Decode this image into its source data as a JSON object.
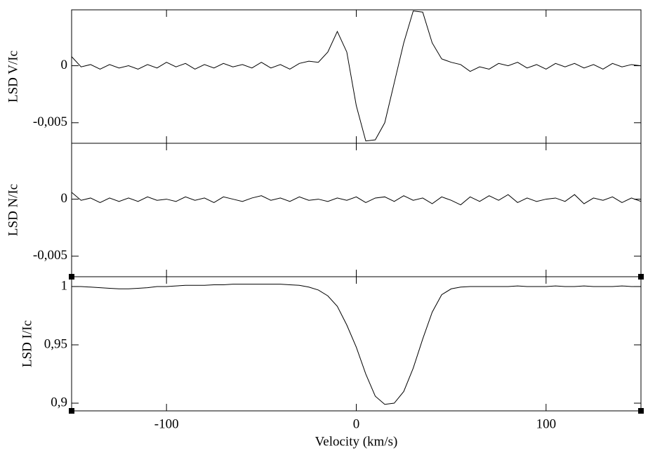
{
  "chart_data": [
    {
      "type": "line",
      "ylabel": "LSD V/Ic",
      "xlim": [
        -150,
        150
      ],
      "ylim": [
        -0.0068,
        0.0049
      ],
      "yticks": [
        {
          "value": -0.005,
          "label": "-0,005"
        },
        0
      ],
      "x": [
        -150,
        -145,
        -140,
        -135,
        -130,
        -125,
        -120,
        -115,
        -110,
        -105,
        -100,
        -95,
        -90,
        -85,
        -80,
        -75,
        -70,
        -65,
        -60,
        -55,
        -50,
        -45,
        -40,
        -35,
        -30,
        -25,
        -20,
        -15,
        -10,
        -5,
        0,
        5,
        10,
        15,
        20,
        25,
        30,
        35,
        40,
        45,
        50,
        55,
        60,
        65,
        70,
        75,
        80,
        85,
        90,
        95,
        100,
        105,
        110,
        115,
        120,
        125,
        130,
        135,
        140,
        145,
        150
      ],
      "series": [
        {
          "color": "#000000",
          "values": [
            0.0008,
            -0.0001,
            0.0001,
            -0.0003,
            0.0001,
            -0.0002,
            0.0,
            -0.0003,
            0.0001,
            -0.0002,
            0.0003,
            -0.0001,
            0.0002,
            -0.0003,
            0.0001,
            -0.0002,
            0.0002,
            -0.0001,
            0.0001,
            -0.0002,
            0.0003,
            -0.0002,
            0.0001,
            -0.0003,
            0.0002,
            0.0004,
            0.0003,
            0.0012,
            0.003,
            0.0012,
            -0.0035,
            -0.0066,
            -0.0065,
            -0.005,
            -0.0015,
            0.002,
            0.0048,
            0.0047,
            0.002,
            0.0006,
            0.0003,
            0.0001,
            -0.0005,
            -0.0001,
            -0.0003,
            0.0002,
            0.0,
            0.0003,
            -0.0002,
            0.0001,
            -0.0003,
            0.0002,
            -0.0001,
            0.0002,
            -0.0002,
            0.0001,
            -0.0003,
            0.0002,
            -0.0001,
            0.0001,
            0.0
          ]
        }
      ]
    },
    {
      "type": "line",
      "ylabel": "LSD N/Ic",
      "xlim": [
        -150,
        150
      ],
      "ylim": [
        -0.0068,
        0.0049
      ],
      "yticks": [
        {
          "value": -0.005,
          "label": "-0,005"
        },
        0
      ],
      "x": [
        -150,
        -145,
        -140,
        -135,
        -130,
        -125,
        -120,
        -115,
        -110,
        -105,
        -100,
        -95,
        -90,
        -85,
        -80,
        -75,
        -70,
        -65,
        -60,
        -55,
        -50,
        -45,
        -40,
        -35,
        -30,
        -25,
        -20,
        -15,
        -10,
        -5,
        0,
        5,
        10,
        15,
        20,
        25,
        30,
        35,
        40,
        45,
        50,
        55,
        60,
        65,
        70,
        75,
        80,
        85,
        90,
        95,
        100,
        105,
        110,
        115,
        120,
        125,
        130,
        135,
        140,
        145,
        150
      ],
      "series": [
        {
          "color": "#000000",
          "values": [
            0.0006,
            -0.0001,
            0.0001,
            -0.0003,
            0.0001,
            -0.0002,
            0.0001,
            -0.0002,
            0.0002,
            -0.0001,
            0.0,
            -0.0002,
            0.0002,
            -0.0001,
            0.0001,
            -0.0003,
            0.0002,
            0.0,
            -0.0002,
            0.0001,
            0.0003,
            -0.0001,
            0.0001,
            -0.0002,
            0.0002,
            -0.0001,
            0.0,
            -0.0002,
            0.0001,
            -0.0001,
            0.0002,
            -0.0003,
            0.0001,
            0.0002,
            -0.0002,
            0.0003,
            -0.0001,
            0.0001,
            -0.0004,
            0.0002,
            -0.0001,
            -0.0005,
            0.0002,
            -0.0002,
            0.0003,
            -0.0001,
            0.0004,
            -0.0003,
            0.0001,
            -0.0002,
            0.0,
            0.0001,
            -0.0002,
            0.0004,
            -0.0004,
            0.0001,
            -0.0001,
            0.0002,
            -0.0003,
            0.0001,
            -0.0002
          ]
        }
      ]
    },
    {
      "type": "line",
      "ylabel": "LSD I/Ic",
      "xlabel": "Velocity (km/s)",
      "xlim": [
        -150,
        150
      ],
      "ylim": [
        0.8934,
        1.0084
      ],
      "yticks": [
        {
          "value": 0.9,
          "label": "0,9"
        },
        {
          "value": 0.95,
          "label": "0,95"
        },
        1
      ],
      "xticks": [
        -100,
        0,
        100
      ],
      "x": [
        -150,
        -145,
        -140,
        -135,
        -130,
        -125,
        -120,
        -115,
        -110,
        -105,
        -100,
        -95,
        -90,
        -85,
        -80,
        -75,
        -70,
        -65,
        -60,
        -55,
        -50,
        -45,
        -40,
        -35,
        -30,
        -25,
        -20,
        -15,
        -10,
        -5,
        0,
        5,
        10,
        15,
        20,
        25,
        30,
        35,
        40,
        45,
        50,
        55,
        60,
        65,
        70,
        75,
        80,
        85,
        90,
        95,
        100,
        105,
        110,
        115,
        120,
        125,
        130,
        135,
        140,
        145,
        150
      ],
      "series": [
        {
          "color": "#000000",
          "values": [
            1.0,
            1.0,
            0.9995,
            0.999,
            0.9985,
            0.998,
            0.998,
            0.9985,
            0.999,
            1.0,
            1.0,
            1.0005,
            1.001,
            1.001,
            1.001,
            1.0015,
            1.0015,
            1.002,
            1.002,
            1.002,
            1.002,
            1.002,
            1.002,
            1.0015,
            1.001,
            0.9995,
            0.997,
            0.992,
            0.983,
            0.967,
            0.948,
            0.925,
            0.906,
            0.899,
            0.9,
            0.91,
            0.93,
            0.955,
            0.978,
            0.993,
            0.998,
            0.9995,
            1.0,
            1.0,
            1.0,
            1.0,
            1.0,
            1.0005,
            1.0,
            1.0,
            1.0,
            1.0005,
            1.0,
            1.0,
            1.0005,
            1.0,
            1.0,
            1.0,
            1.0005,
            1.0,
            1.0
          ]
        }
      ]
    }
  ]
}
